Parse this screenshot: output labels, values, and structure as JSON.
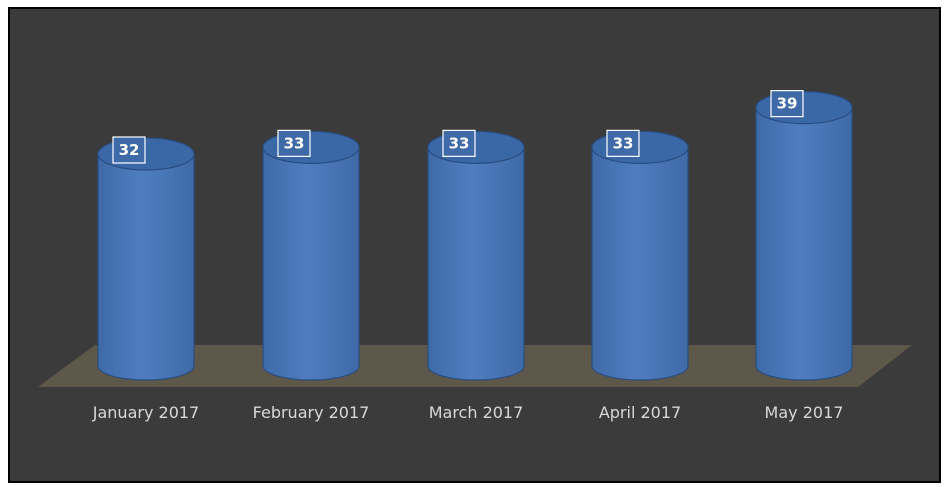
{
  "chart_data": {
    "type": "bar",
    "categories": [
      "January 2017",
      "February 2017",
      "March 2017",
      "April 2017",
      "May 2017"
    ],
    "values": [
      32,
      33,
      33,
      33,
      39
    ],
    "data_labels": [
      "32",
      "33",
      "33",
      "33",
      "39"
    ],
    "title": "",
    "xlabel": "",
    "ylabel": "",
    "ylim": [
      0,
      42
    ],
    "grid": false,
    "legend": "none",
    "style": "3d-cylinder",
    "colors": {
      "background": "#3b3b3b",
      "floor": "#5e584a",
      "bar": "#4f7dbf",
      "bar_dark": "#3f6aa8",
      "bar_top": "#3a67a6",
      "bar_edge": "#2a4d80",
      "label_box_fill": "#3f6aa8",
      "label_box_stroke": "#ffffff",
      "tick_text": "#d8d8d8"
    }
  }
}
